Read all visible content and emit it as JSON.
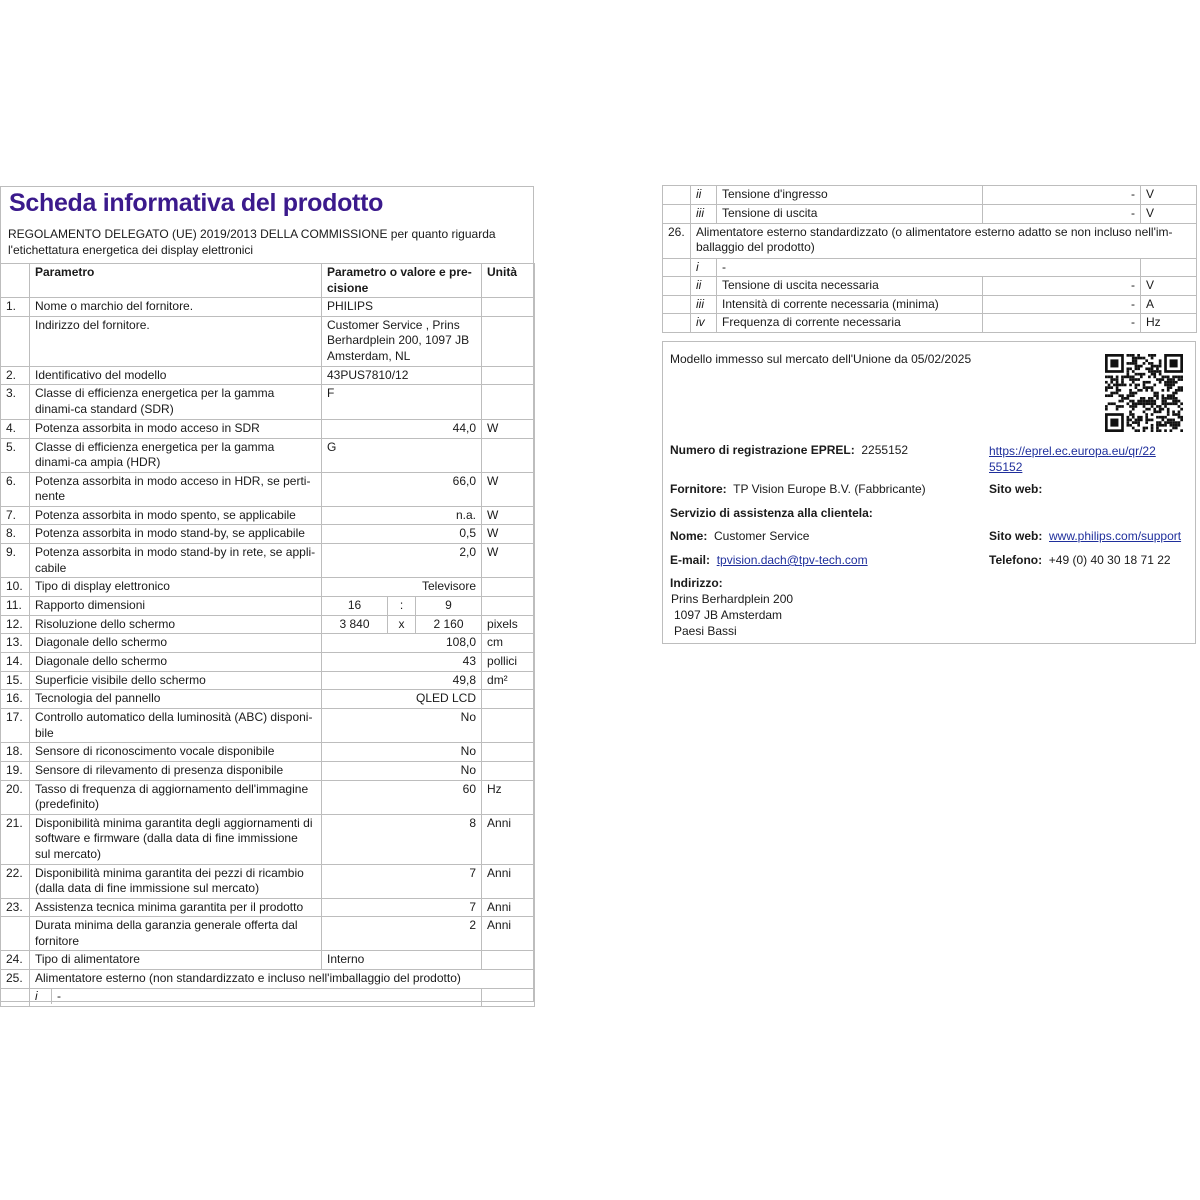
{
  "title": "Scheda informativa del prodotto",
  "subtitle": "REGOLAMENTO DELEGATO (UE) 2019/2013 DELLA COMMISSIONE per quanto riguarda l'etichettatura energetica dei display elettronici",
  "table_headers": {
    "param": "Parametro",
    "value": "Parametro o valore e pre-cisione",
    "unit": "Unità"
  },
  "rows": [
    {
      "num": "1.",
      "param": "Nome o marchio del fornitore.",
      "value": "PHILIPS",
      "unit": "",
      "align": "left"
    },
    {
      "num": "",
      "param": "Indirizzo del fornitore.",
      "value": "Customer Service , Prins Berhardplein 200, 1097 JB Amsterdam, NL",
      "unit": "",
      "align": "left"
    },
    {
      "num": "2.",
      "param": "Identificativo del modello",
      "value": "43PUS7810/12",
      "unit": "",
      "align": "left"
    },
    {
      "num": "3.",
      "param": "Classe di efficienza energetica per la gamma dinami-ca standard (SDR)",
      "value": "F",
      "unit": "",
      "align": "left"
    },
    {
      "num": "4.",
      "param": "Potenza assorbita in modo acceso in SDR",
      "value": "44,0",
      "unit": "W",
      "align": "right"
    },
    {
      "num": "5.",
      "param": "Classe di efficienza energetica per la gamma dinami-ca ampia (HDR)",
      "value": "G",
      "unit": "",
      "align": "left"
    },
    {
      "num": "6.",
      "param": "Potenza assorbita in modo acceso in HDR, se perti-nente",
      "value": "66,0",
      "unit": "W",
      "align": "right"
    },
    {
      "num": "7.",
      "param": "Potenza assorbita in modo spento, se applicabile",
      "value": "n.a.",
      "unit": "W",
      "align": "right"
    },
    {
      "num": "8.",
      "param": "Potenza assorbita in modo stand-by, se applicabile",
      "value": "0,5",
      "unit": "W",
      "align": "right"
    },
    {
      "num": "9.",
      "param": "Potenza assorbita in modo stand-by in rete, se appli-cabile",
      "value": "2,0",
      "unit": "W",
      "align": "right"
    },
    {
      "num": "10.",
      "param": "Tipo di display elettronico",
      "value": "Televisore",
      "unit": "",
      "align": "right"
    },
    {
      "num": "11.",
      "param": "Rapporto dimensioni",
      "split": [
        "16",
        ":",
        "9"
      ],
      "unit": ""
    },
    {
      "num": "12.",
      "param": "Risoluzione dello schermo",
      "split": [
        "3 840",
        "x",
        "2 160"
      ],
      "unit": "pixels"
    },
    {
      "num": "13.",
      "param": "Diagonale dello schermo",
      "value": "108,0",
      "unit": "cm",
      "align": "right"
    },
    {
      "num": "14.",
      "param": "Diagonale dello schermo",
      "value": "43",
      "unit": "pollici",
      "align": "right"
    },
    {
      "num": "15.",
      "param": "Superficie visibile dello schermo",
      "value": "49,8",
      "unit": "dm²",
      "align": "right"
    },
    {
      "num": "16.",
      "param": "Tecnologia del pannello",
      "value": "QLED LCD",
      "unit": "",
      "align": "right"
    },
    {
      "num": "17.",
      "param": "Controllo automatico della luminosità (ABC) disponi-bile",
      "value": "No",
      "unit": "",
      "align": "right"
    },
    {
      "num": "18.",
      "param": "Sensore di riconoscimento vocale disponibile",
      "value": "No",
      "unit": "",
      "align": "right"
    },
    {
      "num": "19.",
      "param": "Sensore di rilevamento di presenza disponibile",
      "value": "No",
      "unit": "",
      "align": "right"
    },
    {
      "num": "20.",
      "param": "Tasso di frequenza di aggiornamento dell'immagine (predefinito)",
      "value": "60",
      "unit": "Hz",
      "align": "right"
    },
    {
      "num": "21.",
      "param": "Disponibilità minima garantita degli aggiornamenti di software e firmware (dalla data di fine immissione sul mercato)",
      "value": "8",
      "unit": "Anni",
      "align": "right"
    },
    {
      "num": "22.",
      "param": "Disponibilità minima garantita dei pezzi di ricambio (dalla data di fine immissione sul mercato)",
      "value": "7",
      "unit": "Anni",
      "align": "right"
    },
    {
      "num": "23.",
      "param": "Assistenza tecnica minima garantita per il prodotto",
      "value": "7",
      "unit": "Anni",
      "align": "right"
    },
    {
      "num": "",
      "param": "Durata minima della garanzia generale offerta dal fornitore",
      "value": "2",
      "unit": "Anni",
      "align": "right"
    },
    {
      "num": "24.",
      "param": "Tipo di alimentatore",
      "value": "Interno",
      "unit": "",
      "align": "left"
    },
    {
      "num": "25.",
      "span": "Alimentatore esterno (non standardizzato e incluso nell'imballaggio del prodotto)"
    },
    {
      "num": "",
      "roman": "i",
      "rest": "-",
      "unit": ""
    }
  ],
  "right_rows": [
    {
      "num": "",
      "roman": "ii",
      "param": "Tensione d'ingresso",
      "value": "-",
      "unit": "V"
    },
    {
      "num": "",
      "roman": "iii",
      "param": "Tensione di uscita",
      "value": "-",
      "unit": "V"
    },
    {
      "num": "26.",
      "span": "Alimentatore esterno standardizzato (o alimentatore esterno adatto se non incluso nell'im-ballaggio del prodotto)"
    },
    {
      "num": "",
      "roman": "i",
      "rest": "-",
      "unit": ""
    },
    {
      "num": "",
      "roman": "ii",
      "param": "Tensione di uscita necessaria",
      "value": "-",
      "unit": "V"
    },
    {
      "num": "",
      "roman": "iii",
      "param": "Intensità di corrente necessaria (minima)",
      "value": "-",
      "unit": "A"
    },
    {
      "num": "",
      "roman": "iv",
      "param": "Frequenza di corrente necessaria",
      "value": "-",
      "unit": "Hz"
    }
  ],
  "info": {
    "market_date": "Modello immesso sul mercato dell'Unione da 05/02/2025",
    "eprel_label": "Numero di registrazione EPREL:",
    "eprel_value": "2255152",
    "eprel_url_1": "https://eprel.ec.europa.eu/qr/22",
    "eprel_url_2": "55152",
    "supplier_label": "Fornitore:",
    "supplier_value": "TP Vision Europe B.V. (Fabbricante)",
    "website_label": "Sito web:",
    "service_heading": "Servizio di assistenza alla clientela:",
    "name_label": "Nome:",
    "name_value": "Customer Service",
    "service_web_label": "Sito web:",
    "service_web_value": "www.philips.com/support",
    "email_label": "E-mail:",
    "email_value": "tpvision.dach@tpv-tech.com",
    "phone_label": "Telefono:",
    "phone_value": "+49 (0) 40 30 18 71 22",
    "address_label": "Indirizzo:",
    "address_lines": [
      "Prins Berhardplein 200",
      "1097 JB Amsterdam",
      "Paesi Bassi"
    ]
  },
  "qr_icon": "qr-code-icon"
}
